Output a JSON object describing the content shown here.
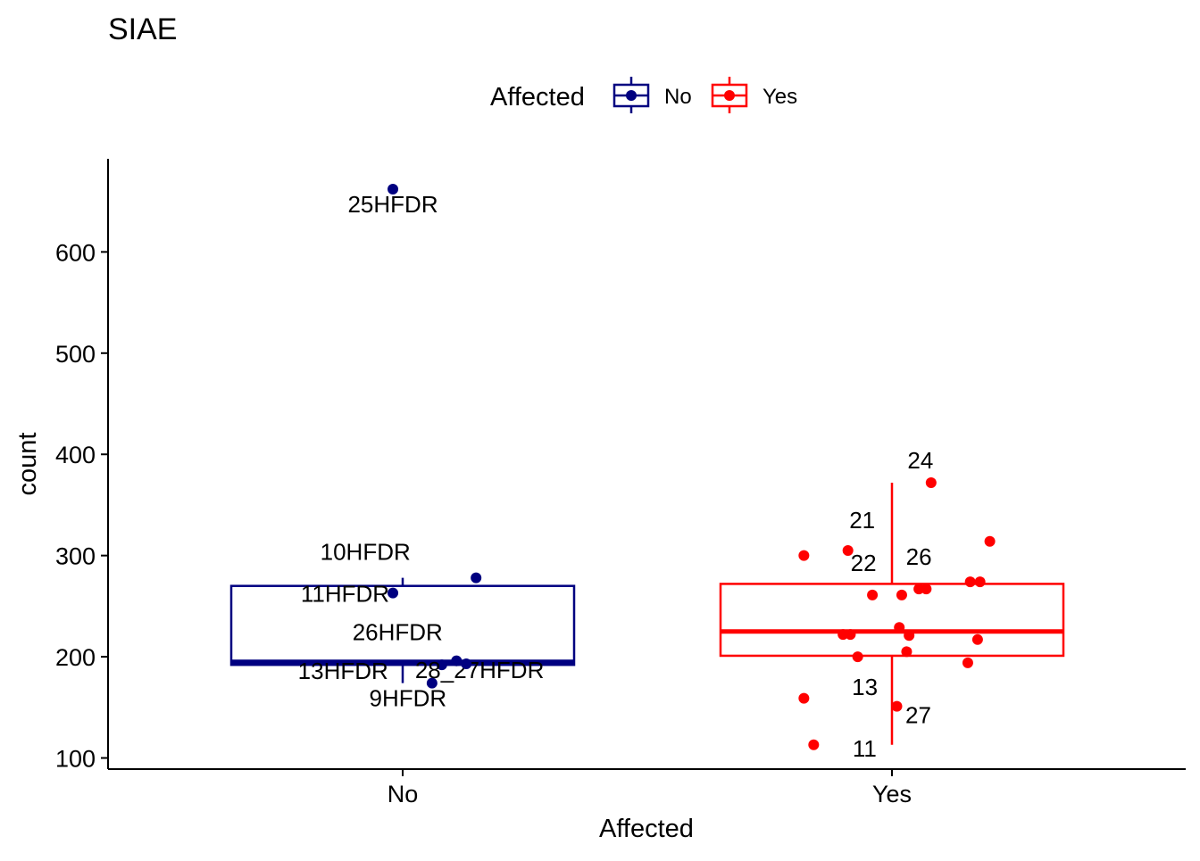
{
  "chart_data": {
    "type": "box",
    "title": "SIAE",
    "xlabel": "Affected",
    "ylabel": "count",
    "categories": [
      "No",
      "Yes"
    ],
    "ylim": [
      89,
      692
    ],
    "yticks": [
      100,
      200,
      300,
      400,
      500,
      600
    ],
    "grid": false,
    "legend": {
      "title": "Affected",
      "position": "top",
      "entries": [
        {
          "label": "No",
          "color": "#000080"
        },
        {
          "label": "Yes",
          "color": "#ff0000"
        }
      ]
    },
    "series": [
      {
        "name": "No",
        "color": "#000080",
        "box": {
          "q1": 192,
          "median": 195,
          "q3": 270,
          "whisker_low": 174,
          "whisker_high": 278
        },
        "points": [
          {
            "x": -0.02,
            "y": 662,
            "label": "25HFDR"
          },
          {
            "x": -0.02,
            "y": 263,
            "label": "11HFDR"
          },
          {
            "x": 0.15,
            "y": 278,
            "label": "10HFDR"
          },
          {
            "x": 0.06,
            "y": 174,
            "label": "9HFDR"
          },
          {
            "x": 0.08,
            "y": 192,
            "label": "28_27HFDR"
          },
          {
            "x": 0.11,
            "y": 196,
            "label": "26HFDR"
          },
          {
            "x": 0.13,
            "y": 193,
            "label": "13HFDR"
          }
        ]
      },
      {
        "name": "Yes",
        "color": "#ff0000",
        "box": {
          "q1": 201,
          "median": 225,
          "q3": 272,
          "whisker_low": 113,
          "whisker_high": 372
        },
        "points": [
          {
            "x": 0.08,
            "y": 372,
            "label": "24"
          },
          {
            "x": 0.2,
            "y": 314,
            "label": ""
          },
          {
            "x": -0.09,
            "y": 305,
            "label": "21"
          },
          {
            "x": -0.18,
            "y": 300,
            "label": ""
          },
          {
            "x": 0.16,
            "y": 274,
            "label": ""
          },
          {
            "x": 0.18,
            "y": 274,
            "label": ""
          },
          {
            "x": 0.055,
            "y": 267,
            "label": "26"
          },
          {
            "x": 0.07,
            "y": 267,
            "label": ""
          },
          {
            "x": 0.02,
            "y": 261,
            "label": ""
          },
          {
            "x": -0.04,
            "y": 261,
            "label": "22"
          },
          {
            "x": 0.015,
            "y": 229,
            "label": ""
          },
          {
            "x": 0.035,
            "y": 221,
            "label": ""
          },
          {
            "x": -0.1,
            "y": 222,
            "label": ""
          },
          {
            "x": -0.085,
            "y": 222,
            "label": ""
          },
          {
            "x": 0.175,
            "y": 217,
            "label": ""
          },
          {
            "x": 0.03,
            "y": 205,
            "label": ""
          },
          {
            "x": -0.07,
            "y": 200,
            "label": "13"
          },
          {
            "x": 0.155,
            "y": 194,
            "label": ""
          },
          {
            "x": -0.18,
            "y": 159,
            "label": ""
          },
          {
            "x": 0.01,
            "y": 151,
            "label": "27"
          },
          {
            "x": -0.16,
            "y": 113,
            "label": "11"
          }
        ]
      }
    ]
  }
}
